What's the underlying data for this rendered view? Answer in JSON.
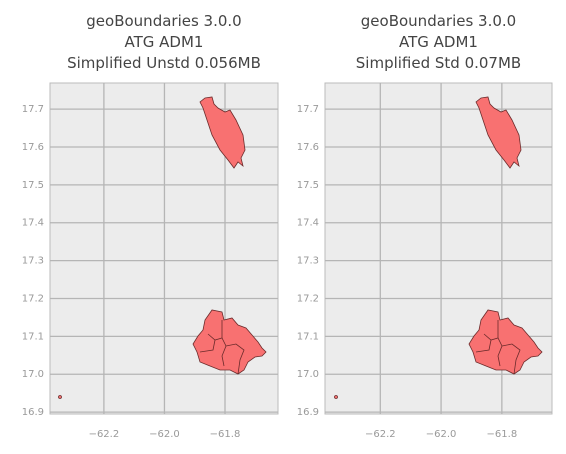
{
  "chart_data": [
    {
      "type": "map",
      "title": [
        "geoBoundaries 3.0.0",
        "ATG ADM1",
        "Simplified Unstd 0.056MB"
      ],
      "xlim": [
        -62.378,
        -61.625
      ],
      "ylim": [
        16.895,
        17.769
      ],
      "xticks": [
        {
          "value": -62.2,
          "label": "−62.2"
        },
        {
          "value": -62.0,
          "label": "−62.0"
        },
        {
          "value": -61.8,
          "label": "−61.8"
        }
      ],
      "yticks": [
        16.9,
        {
          "value": 17,
          "label": "17.0"
        },
        17.1,
        17.2,
        17.3,
        17.4,
        17.5,
        17.6,
        17.7
      ],
      "grid": true,
      "color": "#f87171"
    },
    {
      "type": "map",
      "title": [
        "geoBoundaries 3.0.0",
        "ATG ADM1",
        "Simplified Std 0.07MB"
      ],
      "xlim": [
        -62.382,
        -61.635
      ],
      "ylim": [
        16.895,
        17.769
      ],
      "xticks": [
        {
          "value": -62.2,
          "label": "−62.2"
        },
        {
          "value": -62.0,
          "label": "−62.0"
        },
        {
          "value": -61.8,
          "label": "−61.8"
        }
      ],
      "yticks": [
        16.9,
        {
          "value": 17,
          "label": "17.0"
        },
        17.1,
        17.2,
        17.3,
        17.4,
        17.5,
        17.6,
        17.7
      ],
      "grid": true,
      "color": "#f87171"
    }
  ]
}
